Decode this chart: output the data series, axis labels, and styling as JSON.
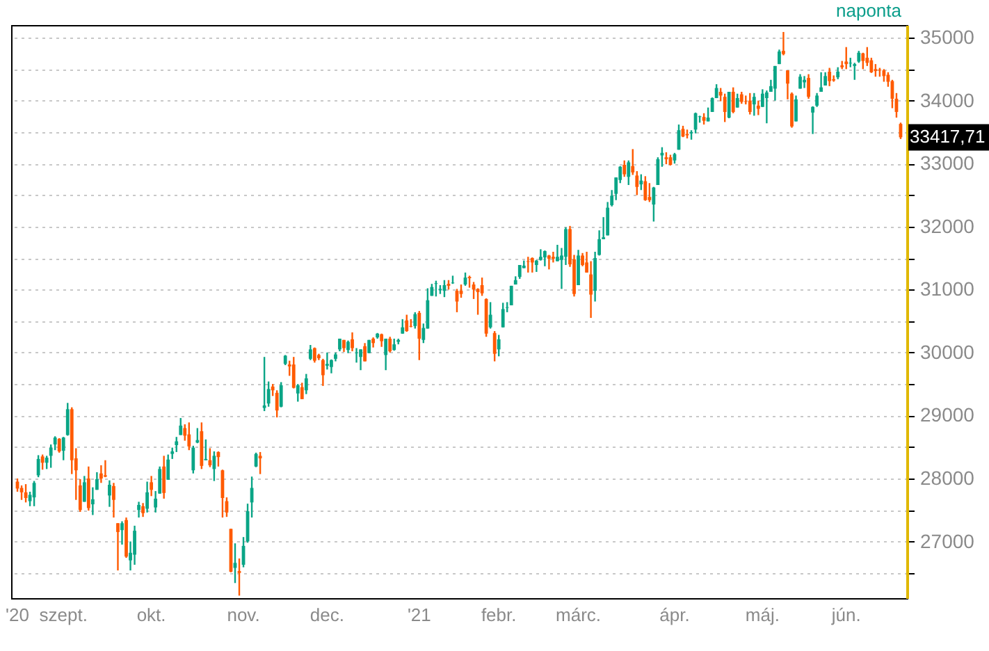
{
  "chart_data": {
    "type": "candlestick",
    "categories": [
      "'20",
      null,
      null,
      null,
      null,
      null,
      null,
      null,
      null,
      null,
      null,
      "szept.",
      null,
      null,
      null,
      null,
      null,
      null,
      null,
      null,
      null,
      null,
      null,
      null,
      null,
      null,
      null,
      null,
      null,
      null,
      null,
      null,
      "okt.",
      null,
      null,
      null,
      null,
      null,
      null,
      null,
      null,
      null,
      null,
      null,
      null,
      null,
      null,
      null,
      null,
      null,
      null,
      null,
      null,
      null,
      "nov.",
      null,
      null,
      null,
      null,
      null,
      null,
      null,
      null,
      null,
      null,
      null,
      null,
      null,
      null,
      null,
      null,
      null,
      null,
      null,
      "dec.",
      null,
      null,
      null,
      null,
      null,
      null,
      null,
      null,
      null,
      null,
      null,
      null,
      null,
      null,
      null,
      null,
      null,
      null,
      null,
      null,
      null,
      "'21",
      null,
      null,
      null,
      null,
      null,
      null,
      null,
      null,
      null,
      null,
      null,
      null,
      null,
      null,
      null,
      null,
      null,
      null,
      "febr.",
      null,
      null,
      null,
      null,
      null,
      null,
      null,
      null,
      null,
      null,
      null,
      null,
      null,
      null,
      null,
      null,
      null,
      null,
      "márc.",
      null,
      null,
      null,
      null,
      null,
      null,
      null,
      null,
      null,
      null,
      null,
      null,
      null,
      null,
      null,
      null,
      null,
      null,
      null,
      null,
      null,
      null,
      "ápr.",
      null,
      null,
      null,
      null,
      null,
      null,
      null,
      null,
      null,
      null,
      null,
      null,
      null,
      null,
      null,
      null,
      null,
      null,
      null,
      null,
      "máj.",
      null,
      null,
      null,
      null,
      null,
      null,
      null,
      null,
      null,
      null,
      null,
      null,
      null,
      null,
      null,
      null,
      null,
      null,
      null,
      "jún.",
      null,
      null,
      null,
      null,
      null,
      null,
      null,
      null,
      null,
      null,
      null,
      null,
      null
    ],
    "ohlc": [
      [
        27950,
        28000,
        27790,
        27840
      ],
      [
        27850,
        27890,
        27660,
        27780
      ],
      [
        27780,
        27910,
        27620,
        27690
      ],
      [
        27640,
        27790,
        27560,
        27740
      ],
      [
        27700,
        27960,
        27560,
        27930
      ],
      [
        28050,
        28370,
        28020,
        28310
      ],
      [
        28350,
        28380,
        28140,
        28250
      ],
      [
        28250,
        28360,
        28150,
        28330
      ],
      [
        28360,
        28540,
        28170,
        28490
      ],
      [
        28540,
        28670,
        28450,
        28650
      ],
      [
        28630,
        28640,
        28410,
        28430
      ],
      [
        28440,
        28660,
        28290,
        28650
      ],
      [
        28690,
        29200,
        28680,
        29100
      ],
      [
        29100,
        29130,
        28070,
        28290
      ],
      [
        28320,
        28480,
        27660,
        28130
      ],
      [
        27890,
        27990,
        27470,
        27500
      ],
      [
        27630,
        28040,
        27630,
        27940
      ],
      [
        28000,
        28190,
        27490,
        27530
      ],
      [
        27590,
        27860,
        27420,
        27670
      ],
      [
        27820,
        28100,
        27820,
        27990
      ],
      [
        28080,
        28210,
        27930,
        28000
      ],
      [
        28050,
        28290,
        28020,
        28030
      ],
      [
        27730,
        27970,
        27550,
        27900
      ],
      [
        27880,
        27930,
        27380,
        27660
      ],
      [
        27290,
        27290,
        26540,
        27150
      ],
      [
        27180,
        27320,
        26950,
        27290
      ],
      [
        27340,
        27380,
        26740,
        26760
      ],
      [
        26700,
        27000,
        26540,
        26820
      ],
      [
        26790,
        27250,
        26630,
        27170
      ],
      [
        27500,
        27630,
        27380,
        27580
      ],
      [
        27560,
        27610,
        27390,
        27450
      ],
      [
        27520,
        27950,
        27460,
        27780
      ],
      [
        27940,
        28040,
        27720,
        27820
      ],
      [
        27540,
        27800,
        27460,
        27680
      ],
      [
        27760,
        28190,
        27760,
        28150
      ],
      [
        28190,
        28360,
        27680,
        27770
      ],
      [
        27980,
        28380,
        27980,
        28300
      ],
      [
        28390,
        28490,
        28310,
        28430
      ],
      [
        28530,
        28660,
        28420,
        28590
      ],
      [
        28690,
        28960,
        28690,
        28840
      ],
      [
        28800,
        28860,
        28600,
        28680
      ],
      [
        28700,
        28890,
        28450,
        28510
      ],
      [
        28130,
        28520,
        28080,
        28490
      ],
      [
        28570,
        28800,
        28560,
        28610
      ],
      [
        28750,
        28890,
        28150,
        28200
      ],
      [
        28290,
        28620,
        28290,
        28310
      ],
      [
        28290,
        28480,
        28180,
        28210
      ],
      [
        28150,
        28430,
        27960,
        28360
      ],
      [
        28420,
        28430,
        28190,
        28340
      ],
      [
        28130,
        28140,
        27380,
        27690
      ],
      [
        27640,
        27700,
        27390,
        27460
      ],
      [
        27200,
        27200,
        26510,
        26520
      ],
      [
        26580,
        26970,
        26340,
        26660
      ],
      [
        26530,
        26730,
        26140,
        26500
      ],
      [
        26630,
        27070,
        26590,
        26930
      ],
      [
        27000,
        27600,
        26980,
        27480
      ],
      [
        27620,
        28030,
        27380,
        27850
      ],
      [
        28190,
        28410,
        28180,
        28390
      ],
      [
        28360,
        28420,
        28070,
        28320
      ],
      [
        29120,
        29930,
        29070,
        29160
      ],
      [
        29190,
        29540,
        29140,
        29420
      ],
      [
        29460,
        29500,
        29310,
        29400
      ],
      [
        29360,
        29400,
        28970,
        29080
      ],
      [
        29140,
        29530,
        29130,
        29480
      ],
      [
        29820,
        29960,
        29800,
        29950
      ],
      [
        29810,
        29870,
        29630,
        29780
      ],
      [
        29810,
        29930,
        29430,
        29440
      ],
      [
        29350,
        29500,
        29220,
        29480
      ],
      [
        29450,
        29520,
        29260,
        29260
      ],
      [
        29400,
        29660,
        29340,
        29590
      ],
      [
        29900,
        30120,
        29880,
        30050
      ],
      [
        30070,
        30080,
        29840,
        29870
      ],
      [
        29960,
        29980,
        29880,
        29910
      ],
      [
        29880,
        29900,
        29470,
        29640
      ],
      [
        29790,
        30000,
        29730,
        29820
      ],
      [
        29770,
        29890,
        29670,
        29880
      ],
      [
        29900,
        30000,
        29860,
        29970
      ],
      [
        30050,
        30220,
        30020,
        30220
      ],
      [
        30200,
        30200,
        30010,
        30070
      ],
      [
        30040,
        30190,
        29990,
        30170
      ],
      [
        30210,
        30320,
        30020,
        30070
      ],
      [
        29990,
        30070,
        29840,
        30000
      ],
      [
        29930,
        30050,
        29720,
        30050
      ],
      [
        30100,
        30150,
        29860,
        29860
      ],
      [
        29990,
        30200,
        29990,
        30200
      ],
      [
        30220,
        30240,
        30080,
        30150
      ],
      [
        30240,
        30310,
        30220,
        30300
      ],
      [
        30290,
        30300,
        30090,
        30180
      ],
      [
        29960,
        30220,
        29720,
        30220
      ],
      [
        30220,
        30250,
        30000,
        30020
      ],
      [
        30040,
        30220,
        30030,
        30130
      ],
      [
        30170,
        30220,
        30130,
        30200
      ],
      [
        30300,
        30530,
        30300,
        30400
      ],
      [
        30510,
        30600,
        30330,
        30340
      ],
      [
        30420,
        30530,
        30400,
        30410
      ],
      [
        30420,
        30640,
        30380,
        30610
      ],
      [
        30630,
        30660,
        29880,
        30220
      ],
      [
        30200,
        30460,
        30150,
        30390
      ],
      [
        30380,
        31020,
        30380,
        30830
      ],
      [
        30900,
        31090,
        30900,
        31040
      ],
      [
        31090,
        31140,
        30890,
        31100
      ],
      [
        30990,
        31070,
        30930,
        31010
      ],
      [
        30980,
        31150,
        30880,
        31070
      ],
      [
        31090,
        31150,
        31000,
        31060
      ],
      [
        31100,
        31220,
        31090,
        31110
      ],
      [
        30980,
        31010,
        30640,
        30810
      ],
      [
        30980,
        31080,
        30870,
        30930
      ],
      [
        31080,
        31270,
        31060,
        31190
      ],
      [
        31200,
        31220,
        31030,
        31180
      ],
      [
        31080,
        31120,
        30850,
        31000
      ],
      [
        31010,
        31020,
        30600,
        30960
      ],
      [
        31070,
        31190,
        30900,
        30940
      ],
      [
        30850,
        30860,
        30250,
        30300
      ],
      [
        30400,
        30800,
        30380,
        30600
      ],
      [
        30310,
        30340,
        29860,
        29980
      ],
      [
        30050,
        30280,
        29940,
        30210
      ],
      [
        30400,
        30790,
        30400,
        30690
      ],
      [
        30710,
        30800,
        30640,
        30720
      ],
      [
        30750,
        31060,
        30750,
        31060
      ],
      [
        31080,
        31210,
        31080,
        31150
      ],
      [
        31200,
        31390,
        31170,
        31390
      ],
      [
        31340,
        31460,
        31340,
        31380
      ],
      [
        31450,
        31520,
        31270,
        31440
      ],
      [
        31500,
        31510,
        31270,
        31430
      ],
      [
        31390,
        31470,
        31280,
        31460
      ],
      [
        31470,
        31640,
        31460,
        31520
      ],
      [
        31510,
        31620,
        31370,
        31610
      ],
      [
        31540,
        31550,
        31320,
        31490
      ],
      [
        31520,
        31600,
        31430,
        31490
      ],
      [
        31450,
        31710,
        31450,
        31520
      ],
      [
        31470,
        31660,
        31010,
        31540
      ],
      [
        31520,
        31990,
        31390,
        31960
      ],
      [
        31960,
        32010,
        31360,
        31400
      ],
      [
        31480,
        31550,
        30890,
        30930
      ],
      [
        31070,
        31630,
        31070,
        31540
      ],
      [
        31540,
        31580,
        31370,
        31390
      ],
      [
        31430,
        31600,
        31270,
        31270
      ],
      [
        31240,
        31450,
        30550,
        30920
      ],
      [
        30980,
        31600,
        30810,
        31500
      ],
      [
        31550,
        31940,
        31540,
        31800
      ],
      [
        31800,
        32150,
        31800,
        31830
      ],
      [
        31860,
        32390,
        31860,
        32300
      ],
      [
        32340,
        32580,
        32320,
        32490
      ],
      [
        32520,
        32780,
        32420,
        32780
      ],
      [
        32740,
        32960,
        32690,
        32950
      ],
      [
        32980,
        33050,
        32790,
        32830
      ],
      [
        32790,
        33050,
        32660,
        33020
      ],
      [
        32960,
        33230,
        32820,
        32860
      ],
      [
        32810,
        32880,
        32500,
        32630
      ],
      [
        32670,
        32830,
        32580,
        32730
      ],
      [
        32720,
        32800,
        32410,
        32420
      ],
      [
        32470,
        32690,
        32390,
        32420
      ],
      [
        32350,
        32630,
        32080,
        32620
      ],
      [
        32660,
        33100,
        32660,
        33070
      ],
      [
        33130,
        33260,
        32950,
        33170
      ],
      [
        33100,
        33180,
        32990,
        33070
      ],
      [
        33100,
        33140,
        32970,
        32980
      ],
      [
        33050,
        33170,
        33000,
        33150
      ],
      [
        33220,
        33620,
        33220,
        33530
      ],
      [
        33550,
        33600,
        33420,
        33430
      ],
      [
        33470,
        33540,
        33400,
        33450
      ],
      [
        33480,
        33530,
        33380,
        33500
      ],
      [
        33540,
        33810,
        33480,
        33800
      ],
      [
        33740,
        33760,
        33650,
        33750
      ],
      [
        33740,
        33800,
        33620,
        33680
      ],
      [
        33670,
        33890,
        33670,
        33730
      ],
      [
        33820,
        34050,
        33820,
        34040
      ],
      [
        34040,
        34260,
        34040,
        34200
      ],
      [
        34140,
        34200,
        33990,
        34080
      ],
      [
        34060,
        34110,
        33660,
        33820
      ],
      [
        33730,
        34140,
        33720,
        34140
      ],
      [
        34140,
        34210,
        33800,
        33820
      ],
      [
        33890,
        34110,
        33890,
        34040
      ],
      [
        34100,
        34140,
        33950,
        33980
      ],
      [
        33990,
        34080,
        33940,
        33980
      ],
      [
        34000,
        34120,
        33780,
        33820
      ],
      [
        33940,
        34120,
        33760,
        34060
      ],
      [
        33920,
        34000,
        33770,
        33870
      ],
      [
        33900,
        34180,
        33900,
        34110
      ],
      [
        34040,
        34160,
        33640,
        34130
      ],
      [
        34140,
        34330,
        34140,
        34230
      ],
      [
        34190,
        34550,
        34000,
        34550
      ],
      [
        34580,
        34810,
        34580,
        34780
      ],
      [
        34790,
        35090,
        34720,
        34740
      ],
      [
        34480,
        34480,
        34020,
        34270
      ],
      [
        34110,
        34130,
        33570,
        33590
      ],
      [
        33670,
        34080,
        33670,
        34020
      ],
      [
        34190,
        34420,
        34190,
        34380
      ],
      [
        34290,
        34390,
        34200,
        34330
      ],
      [
        34360,
        34420,
        34030,
        34060
      ],
      [
        33810,
        33910,
        33470,
        33900
      ],
      [
        33920,
        34120,
        33900,
        34080
      ],
      [
        34140,
        34450,
        34140,
        34210
      ],
      [
        34240,
        34450,
        34240,
        34390
      ],
      [
        34460,
        34520,
        34230,
        34310
      ],
      [
        34340,
        34400,
        34300,
        34320
      ],
      [
        34370,
        34530,
        34340,
        34460
      ],
      [
        34560,
        34630,
        34500,
        34530
      ],
      [
        34620,
        34850,
        34500,
        34580
      ],
      [
        34590,
        34680,
        34530,
        34600
      ],
      [
        34550,
        34600,
        34330,
        34580
      ],
      [
        34620,
        34790,
        34600,
        34760
      ],
      [
        34750,
        34760,
        34500,
        34630
      ],
      [
        34680,
        34850,
        34550,
        34600
      ],
      [
        34640,
        34680,
        34440,
        34450
      ],
      [
        34500,
        34580,
        34380,
        34470
      ],
      [
        34490,
        34520,
        34380,
        34480
      ],
      [
        34480,
        34500,
        34300,
        34390
      ],
      [
        34410,
        34450,
        34220,
        34300
      ],
      [
        34310,
        34330,
        33880,
        34030
      ],
      [
        34030,
        34120,
        33730,
        33820
      ],
      [
        33630,
        33650,
        33390,
        33417.71
      ]
    ],
    "colors": [
      "#ff5a00",
      "#ff5a00",
      "#ff5a00",
      "#0aa586",
      "#0aa586",
      "#0aa586",
      "#ff5a00",
      "#0aa586",
      "#0aa586",
      "#0aa586",
      "#ff5a00",
      "#0aa586",
      "#0aa586",
      "#ff5a00",
      "#ff5a00",
      "#ff5a00",
      "#0aa586",
      "#ff5a00",
      "#0aa586",
      "#0aa586",
      "#ff5a00",
      "#ff5a00",
      "#0aa586",
      "#ff5a00",
      "#ff5a00",
      "#0aa586",
      "#ff5a00",
      "#0aa586",
      "#0aa586",
      "#0aa586",
      "#ff5a00",
      "#0aa586",
      "#ff5a00",
      "#0aa586",
      "#0aa586",
      "#ff5a00",
      "#0aa586",
      "#0aa586",
      "#0aa586",
      "#0aa586",
      "#ff5a00",
      "#ff5a00",
      "#0aa586",
      "#0aa586",
      "#ff5a00",
      "#0aa586",
      "#ff5a00",
      "#0aa586",
      "#ff5a00",
      "#ff5a00",
      "#ff5a00",
      "#ff5a00",
      "#0aa586",
      "#ff5a00",
      "#0aa586",
      "#0aa586",
      "#0aa586",
      "#0aa586",
      "#ff5a00",
      "#0aa586",
      "#0aa586",
      "#ff5a00",
      "#ff5a00",
      "#0aa586",
      "#0aa586",
      "#ff5a00",
      "#ff5a00",
      "#0aa586",
      "#ff5a00",
      "#0aa586",
      "#0aa586",
      "#ff5a00",
      "#ff5a00",
      "#ff5a00",
      "#0aa586",
      "#0aa586",
      "#0aa586",
      "#0aa586",
      "#ff5a00",
      "#0aa586",
      "#ff5a00",
      "#0aa586",
      "#0aa586",
      "#ff5a00",
      "#0aa586",
      "#ff5a00",
      "#0aa586",
      "#ff5a00",
      "#0aa586",
      "#ff5a00",
      "#0aa586",
      "#0aa586",
      "#0aa586",
      "#ff5a00",
      "#ff5a00",
      "#0aa586",
      "#ff5a00",
      "#0aa586",
      "#0aa586",
      "#0aa586",
      "#0aa586",
      "#0aa586",
      "#0aa586",
      "#ff5a00",
      "#0aa586",
      "#ff5a00",
      "#ff5a00",
      "#0aa586",
      "#ff5a00",
      "#ff5a00",
      "#ff5a00",
      "#ff5a00",
      "#ff5a00",
      "#0aa586",
      "#ff5a00",
      "#0aa586",
      "#0aa586",
      "#0aa586",
      "#0aa586",
      "#0aa586",
      "#0aa586",
      "#0aa586",
      "#ff5a00",
      "#ff5a00",
      "#0aa586",
      "#0aa586",
      "#0aa586",
      "#ff5a00",
      "#ff5a00",
      "#0aa586",
      "#0aa586",
      "#0aa586",
      "#ff5a00",
      "#ff5a00",
      "#0aa586",
      "#ff5a00",
      "#ff5a00",
      "#ff5a00",
      "#0aa586",
      "#0aa586",
      "#0aa586",
      "#0aa586",
      "#0aa586",
      "#0aa586",
      "#0aa586",
      "#ff5a00",
      "#0aa586",
      "#ff5a00",
      "#ff5a00",
      "#0aa586",
      "#ff5a00",
      "#ff5a00",
      "#0aa586",
      "#0aa586",
      "#0aa586",
      "#ff5a00",
      "#ff5a00",
      "#0aa586",
      "#0aa586",
      "#ff5a00",
      "#ff5a00",
      "#0aa586",
      "#0aa586",
      "#0aa586",
      "#ff5a00",
      "#0aa586",
      "#0aa586",
      "#0aa586",
      "#ff5a00",
      "#ff5a00",
      "#0aa586",
      "#ff5a00",
      "#0aa586",
      "#ff5a00",
      "#ff5a00",
      "#ff5a00",
      "#0aa586",
      "#ff5a00",
      "#0aa586",
      "#0aa586",
      "#0aa586",
      "#0aa586",
      "#0aa586",
      "#ff5a00",
      "#ff5a00",
      "#ff5a00",
      "#0aa586",
      "#0aa586",
      "#0aa586",
      "#ff5a00",
      "#0aa586",
      "#0aa586",
      "#0aa586",
      "#0aa586",
      "#ff5a00",
      "#ff5a00",
      "#0aa586",
      "#ff5a00",
      "#ff5a00",
      "#0aa586",
      "#0aa586",
      "#0aa586",
      "#ff5a00",
      "#ff5a00",
      "#ff5a00",
      "#ff5a00",
      "#ff5a00",
      "#ff5a00",
      "#ff5a00",
      "#ff5a00",
      "#ff5a00",
      "#ff5a00"
    ],
    "ylim": [
      26100,
      35200
    ],
    "yticks": [
      {
        "value": 26500,
        "label": null
      },
      27000,
      {
        "value": 27500,
        "label": null
      },
      28000,
      {
        "value": 28500,
        "label": null
      },
      29000,
      {
        "value": 29500,
        "label": null
      },
      30000,
      {
        "value": 30500,
        "label": null
      },
      31000,
      {
        "value": 31500,
        "label": null
      },
      32000,
      {
        "value": 32500,
        "label": null
      },
      33000,
      {
        "value": 33500,
        "label": null
      },
      34000,
      {
        "value": 34500,
        "label": null
      },
      35000
    ],
    "grid": "y",
    "annotations": [
      "naponta",
      "33417,71"
    ]
  }
}
